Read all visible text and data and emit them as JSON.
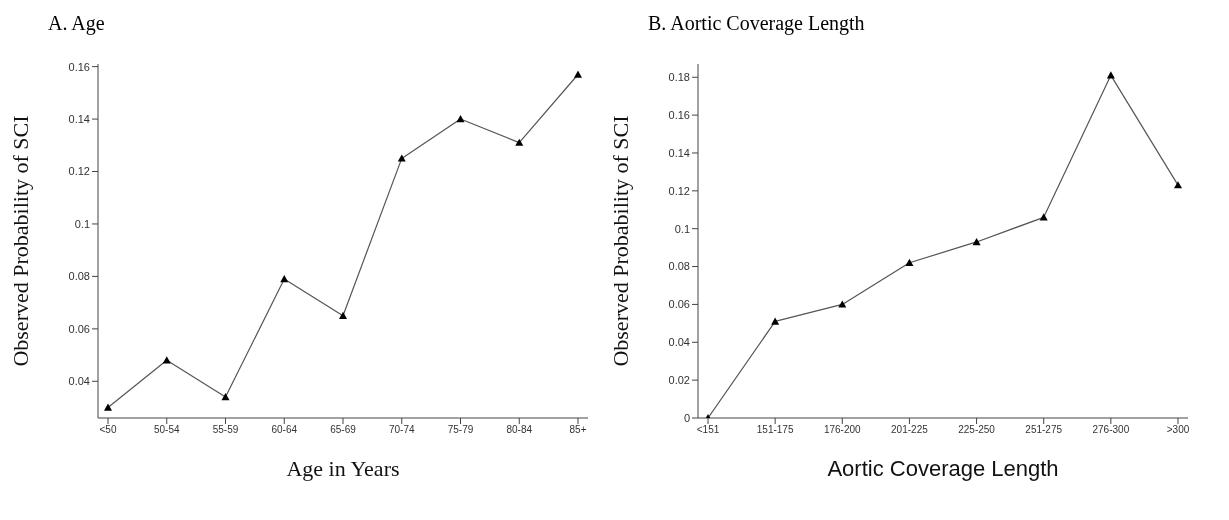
{
  "chart_data": [
    {
      "type": "line",
      "title": "A. Age",
      "xlabel": "Age in Years",
      "ylabel": "Observed Probability of SCI",
      "categories": [
        "<50",
        "50-54",
        "55-59",
        "60-64",
        "65-69",
        "70-74",
        "75-79",
        "80-84",
        "85+"
      ],
      "series": [
        {
          "color": "#555555",
          "values": [
            0.03,
            0.048,
            0.034,
            0.079,
            0.065,
            0.125,
            0.14,
            0.131,
            0.157
          ]
        }
      ],
      "ylim": [
        0.026,
        0.161
      ],
      "yticks": [
        0.04,
        0.06,
        0.08,
        0.1,
        0.12,
        0.14,
        0.16
      ],
      "grid": false,
      "legend": false,
      "marker": "triangle",
      "line_style": "solid"
    },
    {
      "type": "line",
      "title": "B. Aortic Coverage Length",
      "xlabel": "Aortic Coverage Length",
      "ylabel": "Observed Probability of SCI",
      "categories": [
        "<151",
        "151-175",
        "176-200",
        "201-225",
        "225-250",
        "251-275",
        "276-300",
        ">300"
      ],
      "series": [
        {
          "color": "#555555",
          "values": [
            0.0,
            0.051,
            0.06,
            0.082,
            0.093,
            0.106,
            0.181,
            0.123
          ]
        }
      ],
      "ylim": [
        0,
        0.187
      ],
      "yticks": [
        0,
        0.02,
        0.04,
        0.06,
        0.08,
        0.1,
        0.12,
        0.14,
        0.16,
        0.18
      ],
      "grid": false,
      "legend": false,
      "marker": "triangle",
      "line_style": "solid"
    }
  ]
}
